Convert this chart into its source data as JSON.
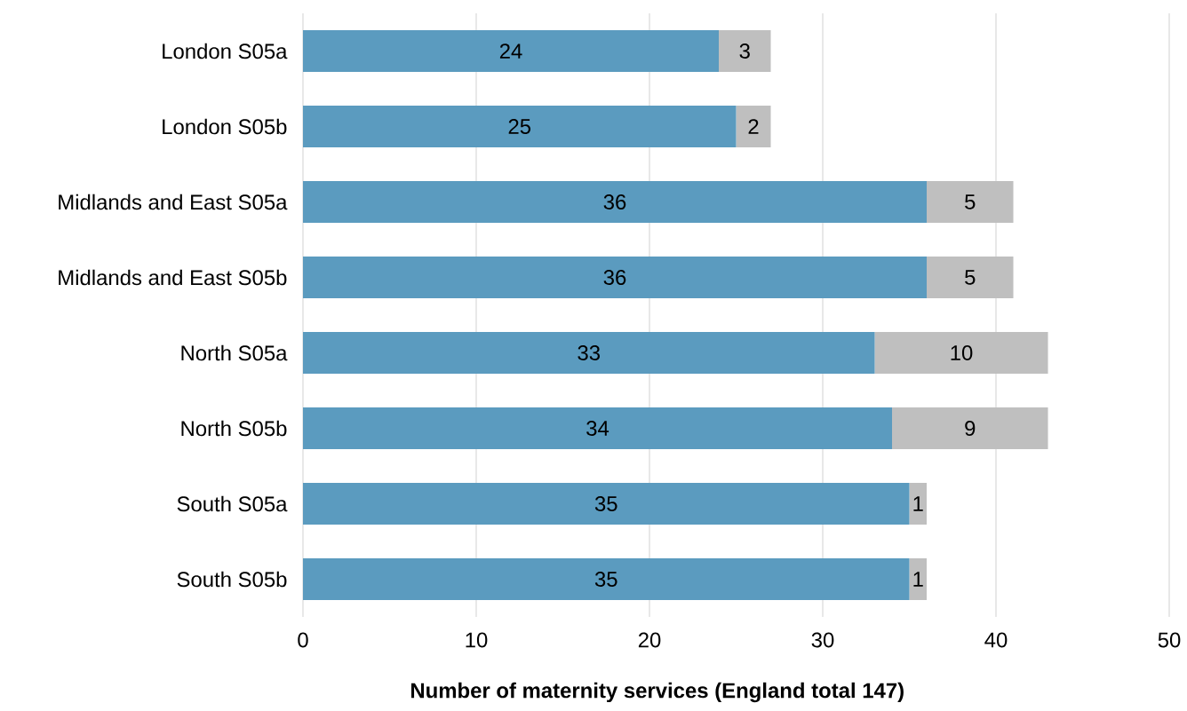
{
  "chart_data": {
    "type": "bar",
    "orientation": "horizontal",
    "stacked": true,
    "categories": [
      "London S05a",
      "London S05b",
      "Midlands and East S05a",
      "Midlands and East S05b",
      "North S05a",
      "North S05b",
      "South S05a",
      "South S05b"
    ],
    "series": [
      {
        "color": "#5b9bbf",
        "values": [
          24,
          25,
          36,
          36,
          33,
          34,
          35,
          35
        ]
      },
      {
        "color": "#bfbfbf",
        "values": [
          3,
          2,
          5,
          5,
          10,
          9,
          1,
          1
        ]
      }
    ],
    "xlabel": "**Number of maternity services (England total 147)**",
    "xlim": [
      0,
      50
    ],
    "xticks": [
      0,
      10,
      20,
      30,
      40,
      50
    ],
    "grid": "x",
    "data_labels": true
  }
}
